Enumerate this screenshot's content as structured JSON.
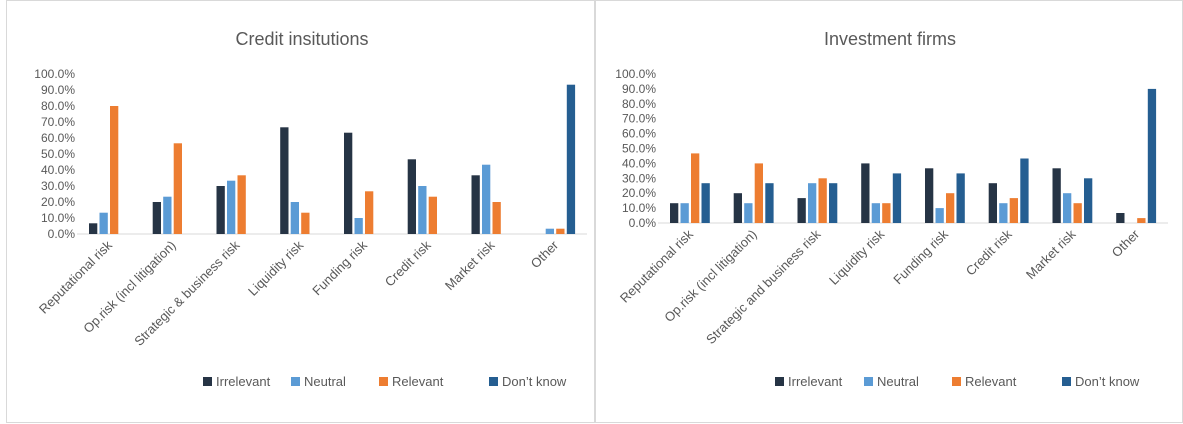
{
  "colors": {
    "irrelevant": "#263445",
    "neutral": "#5b9bd5",
    "relevant": "#ed7d31",
    "dont_know": "#255e91"
  },
  "chart_data": [
    {
      "type": "bar",
      "title": "Credit insitutions",
      "categories": [
        "Reputational risk",
        "Op.risk (incl litigation)",
        "Strategic & business risk",
        "Liquidity risk",
        "Funding risk",
        "Credit risk",
        "Market risk",
        "Other"
      ],
      "yticks": [
        "0.0%",
        "10.0%",
        "20.0%",
        "30.0%",
        "40.0%",
        "50.0%",
        "60.0%",
        "70.0%",
        "80.0%",
        "90.0%",
        "100.0%"
      ],
      "ylim": [
        0,
        100
      ],
      "legend_position": "bottom-right",
      "series": [
        {
          "name": "Irrelevant",
          "values": [
            6.7,
            20.0,
            30.0,
            66.7,
            63.3,
            46.7,
            36.7,
            0
          ]
        },
        {
          "name": "Neutral",
          "values": [
            13.3,
            23.3,
            33.3,
            20.0,
            10.0,
            30.0,
            43.3,
            3.3
          ]
        },
        {
          "name": "Relevant",
          "values": [
            80.0,
            56.7,
            36.7,
            13.3,
            26.7,
            23.3,
            20.0,
            3.3
          ]
        },
        {
          "name": "Don’t know",
          "values": [
            0,
            0,
            0,
            0,
            0,
            0,
            0,
            93.3
          ]
        }
      ]
    },
    {
      "type": "bar",
      "title": "Investment firms",
      "categories": [
        "Reputational risk",
        "Op.risk (incl litigation)",
        "Strategic and business risk",
        "Liquidity risk",
        "Funding risk",
        "Credit risk",
        "Market risk",
        "Other"
      ],
      "yticks": [
        "0.0%",
        "10.0%",
        "20.0%",
        "30.0%",
        "40.0%",
        "50.0%",
        "60.0%",
        "70.0%",
        "80.0%",
        "90.0%",
        "100.0%"
      ],
      "ylim": [
        0,
        100
      ],
      "legend_position": "bottom-right",
      "series": [
        {
          "name": "Irrelevant",
          "values": [
            13.3,
            20.0,
            16.7,
            40.0,
            36.7,
            26.7,
            36.7,
            6.7
          ]
        },
        {
          "name": "Neutral",
          "values": [
            13.3,
            13.3,
            26.7,
            13.3,
            10.0,
            13.3,
            20.0,
            0
          ]
        },
        {
          "name": "Relevant",
          "values": [
            46.7,
            40.0,
            30.0,
            13.3,
            20.0,
            16.7,
            13.3,
            3.3
          ]
        },
        {
          "name": "Don’t know",
          "values": [
            26.7,
            26.7,
            26.7,
            33.3,
            33.3,
            43.3,
            30.0,
            90.0
          ]
        }
      ]
    }
  ]
}
